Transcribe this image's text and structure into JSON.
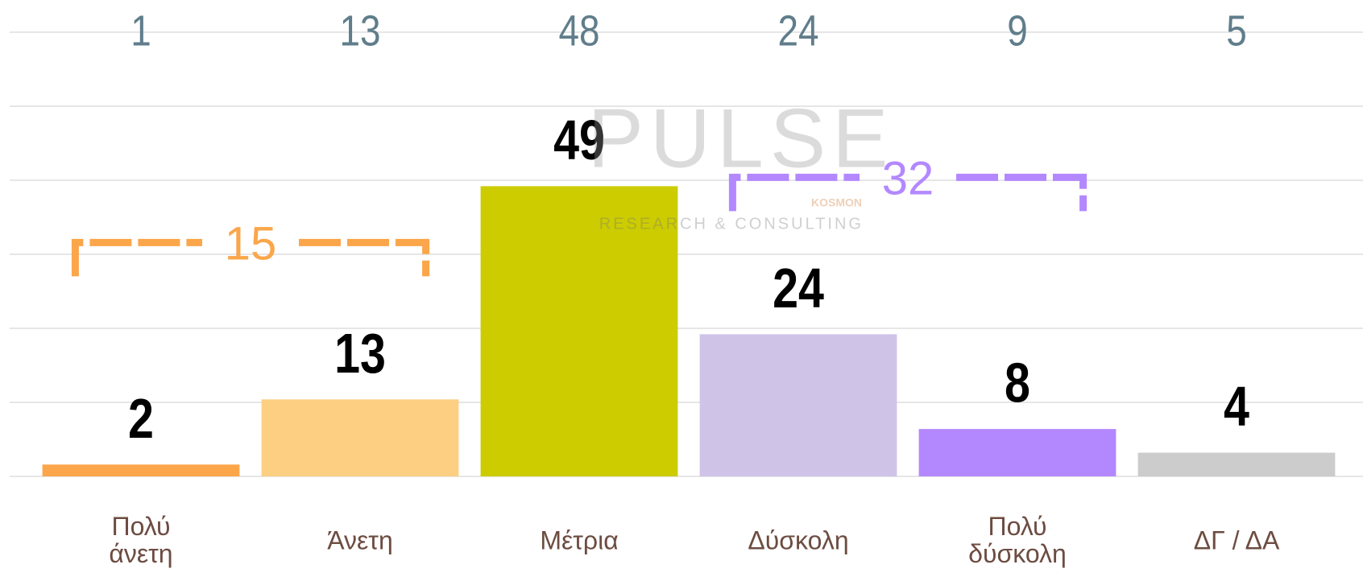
{
  "chart_data": {
    "type": "bar",
    "categories": [
      "Πολύ\nάνετη",
      "Άνετη",
      "Μέτρια",
      "Δύσκολη",
      "Πολύ\nδύσκολη",
      "ΔΓ / ΔΑ"
    ],
    "values": [
      2,
      13,
      49,
      24,
      8,
      4
    ],
    "colors": [
      "#fba64a",
      "#fdcf83",
      "#cccc00",
      "#d0c3e8",
      "#b388ff",
      "#cccccc"
    ],
    "previous_values": [
      1,
      13,
      48,
      24,
      9,
      5
    ],
    "ylim": [
      0,
      75
    ],
    "yticks": [
      0,
      12.5,
      25,
      37.5,
      50,
      62.5,
      75
    ],
    "grid": true,
    "groups": [
      {
        "value": 15,
        "categories": [
          "Πολύ\nάνετη",
          "Άνετη"
        ],
        "color": "#fba64a"
      },
      {
        "value": 32,
        "categories": [
          "Δύσκολη",
          "Πολύ\nδύσκολη"
        ],
        "color": "#b388ff"
      }
    ],
    "watermark": {
      "name": "PULSE",
      "sub": "KOSMON",
      "tagline": "RESEARCH & CONSULTING"
    }
  }
}
